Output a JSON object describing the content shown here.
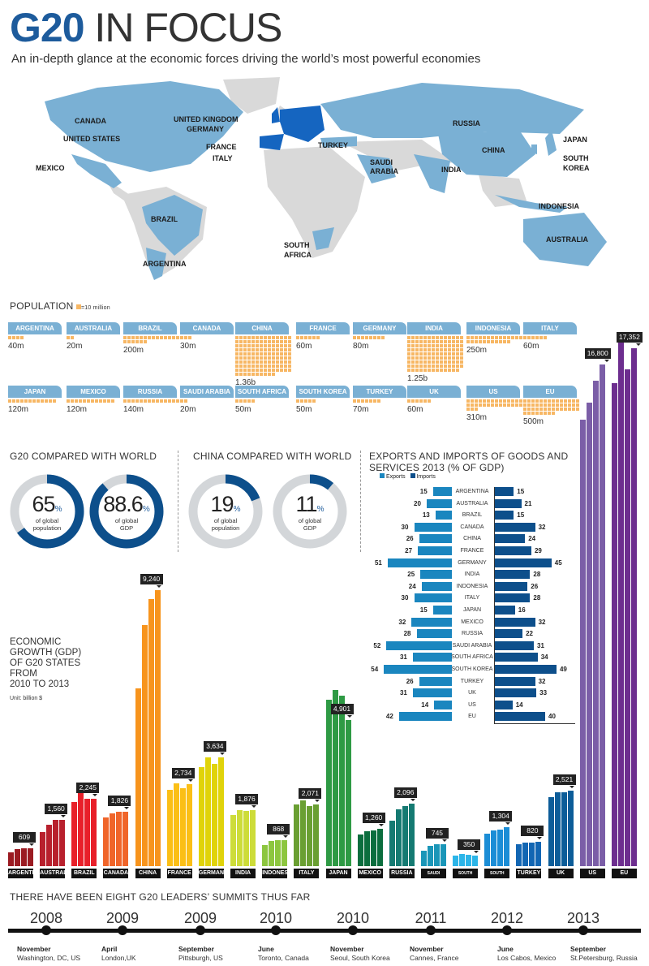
{
  "header": {
    "title_bold": "G20",
    "title_light": "IN FOCUS",
    "subtitle": "An in-depth glance at the economic forces driving the world’s most powerful economies"
  },
  "map": {
    "labels": [
      "CANADA",
      "UNITED STATES",
      "MEXICO",
      "BRAZIL",
      "ARGENTINA",
      "UNITED KINGDOM",
      "GERMANY",
      "FRANCE",
      "ITALY",
      "TURKEY",
      "SAUDI ARABIA",
      "SOUTH AFRICA",
      "RUSSIA",
      "CHINA",
      "INDIA",
      "JAPAN",
      "SOUTH KOREA",
      "INDONESIA",
      "AUSTRALIA"
    ],
    "colors": {
      "g20": "#7ab0d4",
      "eu": "#1565c0",
      "other": "#d9d9d9"
    }
  },
  "population": {
    "title": "POPULATION",
    "legend": "=10 million",
    "unit_millions_per_square": 10,
    "items": [
      {
        "name": "ARGENTINA",
        "label": "40m",
        "value": 40
      },
      {
        "name": "AUSTRALIA",
        "label": "20m",
        "value": 20
      },
      {
        "name": "BRAZIL",
        "label": "200m",
        "value": 200
      },
      {
        "name": "CANADA",
        "label": "30m",
        "value": 30
      },
      {
        "name": "CHINA",
        "label": "1.36b",
        "value": 1360
      },
      {
        "name": "FRANCE",
        "label": "60m",
        "value": 60
      },
      {
        "name": "GERMANY",
        "label": "80m",
        "value": 80
      },
      {
        "name": "INDIA",
        "label": "1.25b",
        "value": 1250
      },
      {
        "name": "INDONESIA",
        "label": "250m",
        "value": 250
      },
      {
        "name": "ITALY",
        "label": "60m",
        "value": 60
      },
      {
        "name": "JAPAN",
        "label": "120m",
        "value": 120
      },
      {
        "name": "MEXICO",
        "label": "120m",
        "value": 120
      },
      {
        "name": "RUSSIA",
        "label": "140m",
        "value": 140
      },
      {
        "name": "SAUDI ARABIA",
        "label": "20m",
        "value": 20
      },
      {
        "name": "SOUTH AFRICA",
        "label": "50m",
        "value": 50
      },
      {
        "name": "SOUTH KOREA",
        "label": "50m",
        "value": 50
      },
      {
        "name": "TURKEY",
        "label": "70m",
        "value": 70
      },
      {
        "name": "UK",
        "label": "60m",
        "value": 60
      },
      {
        "name": "US",
        "label": "310m",
        "value": 310
      },
      {
        "name": "EU",
        "label": "500m",
        "value": 500
      }
    ]
  },
  "g20_world": {
    "title": "G20 COMPARED WITH WORLD",
    "donuts": [
      {
        "value": "65",
        "pct": "%",
        "l1": "of global",
        "l2": "population",
        "fraction": 0.65
      },
      {
        "value": "88.6",
        "pct": "%",
        "l1": "of global",
        "l2": "GDP",
        "fraction": 0.886
      }
    ]
  },
  "china_world": {
    "title": "CHINA COMPARED WITH WORLD",
    "donuts": [
      {
        "value": "19",
        "pct": "%",
        "l1": "of global",
        "l2": "population",
        "fraction": 0.19
      },
      {
        "value": "11",
        "pct": "%",
        "l1": "of global",
        "l2": "GDP",
        "fraction": 0.11
      }
    ]
  },
  "colors": {
    "donut_fill": "#0d4f8b",
    "donut_track": "#d3d6d9",
    "exports": "#1a86bf",
    "imports": "#0d4f8b",
    "timeline": "#111111"
  },
  "chart_data": [
    {
      "type": "bar",
      "title": "EXPORTS AND IMPORTS OF GOODS AND SERVICES 2013 (% OF GDP)",
      "title_l1": "EXPORTS AND IMPORTS OF GOODS AND",
      "title_l2": "SERVICES 2013 (% OF GDP)",
      "legend": [
        "Exports",
        "Imports"
      ],
      "categories": [
        "ARGENTINA",
        "AUSTRALIA",
        "BRAZIL",
        "CANADA",
        "CHINA",
        "FRANCE",
        "GERMANY",
        "INDIA",
        "INDONESIA",
        "ITALY",
        "JAPAN",
        "MEXICO",
        "RUSSIA",
        "SAUDI ARABIA",
        "SOUTH AFRICA",
        "SOUTH KOREA",
        "TURKEY",
        "UK",
        "US",
        "EU"
      ],
      "series": [
        {
          "name": "Exports",
          "values": [
            15,
            20,
            13,
            30,
            26,
            27,
            51,
            25,
            24,
            30,
            15,
            32,
            28,
            52,
            31,
            54,
            26,
            31,
            14,
            42
          ]
        },
        {
          "name": "Imports",
          "values": [
            15,
            21,
            15,
            32,
            24,
            29,
            45,
            28,
            26,
            28,
            16,
            32,
            22,
            31,
            34,
            49,
            32,
            33,
            14,
            40
          ]
        }
      ]
    },
    {
      "type": "bar",
      "title": "ECONOMIC GROWTH (GDP) OF G20 STATES FROM 2010 TO 2013",
      "title_lines": [
        "ECONOMIC",
        "GROWTH (GDP)",
        "OF G20 STATES",
        "FROM",
        "2010 TO 2013"
      ],
      "unit": "Unit: billion $",
      "x": [
        2010,
        2011,
        2012,
        2013
      ],
      "series": [
        {
          "name": "ARGENTINA",
          "values": [
            470,
            560,
            600,
            609
          ],
          "label": "609",
          "color": "#9b1b22"
        },
        {
          "name": "AUSTRALIA",
          "values": [
            1140,
            1390,
            1540,
            1560
          ],
          "label": "1,560",
          "color": "#b8202d"
        },
        {
          "name": "BRAZIL",
          "values": [
            2150,
            2480,
            2260,
            2245
          ],
          "label": "2,245",
          "color": "#e8202a"
        },
        {
          "name": "CANADA",
          "values": [
            1620,
            1780,
            1820,
            1826
          ],
          "label": "1,826",
          "color": "#f0652a"
        },
        {
          "name": "CHINA",
          "values": [
            5960,
            8080,
            8950,
            9240
          ],
          "label": "9,240",
          "color": "#f7941d"
        },
        {
          "name": "FRANCE",
          "values": [
            2570,
            2780,
            2620,
            2734
          ],
          "label": "2,734",
          "color": "#fbbf16"
        },
        {
          "name": "GERMANY",
          "values": [
            3310,
            3640,
            3420,
            3634
          ],
          "label": "3,634",
          "color": "#e0d30a"
        },
        {
          "name": "INDIA",
          "values": [
            1710,
            1880,
            1860,
            1876
          ],
          "label": "1,876",
          "color": "#cddc39"
        },
        {
          "name": "INDONESIA",
          "values": [
            720,
            840,
            870,
            868
          ],
          "label": "868",
          "color": "#8dc63f"
        },
        {
          "name": "ITALY",
          "values": [
            2060,
            2200,
            2020,
            2071
          ],
          "label": "2,071",
          "color": "#6a9f32"
        },
        {
          "name": "JAPAN",
          "values": [
            5580,
            5900,
            5710,
            4901
          ],
          "label": "4,901",
          "color": "#2e9a44"
        },
        {
          "name": "MEXICO",
          "values": [
            1060,
            1170,
            1190,
            1260
          ],
          "label": "1,260",
          "color": "#0b6e3e"
        },
        {
          "name": "RUSSIA",
          "values": [
            1530,
            1900,
            2020,
            2096
          ],
          "label": "2,096",
          "color": "#157a72"
        },
        {
          "name": "SAUDI ARABIA",
          "values": [
            530,
            670,
            740,
            745
          ],
          "label": "745",
          "color": "#1a96b8"
        },
        {
          "name": "SOUTH AFRICA",
          "values": [
            360,
            410,
            380,
            350
          ],
          "label": "350",
          "color": "#2cb5e8"
        },
        {
          "name": "SOUTH KOREA",
          "values": [
            1100,
            1210,
            1230,
            1304
          ],
          "label": "1,304",
          "color": "#1b8dd6"
        },
        {
          "name": "TURKEY",
          "values": [
            740,
            780,
            790,
            820
          ],
          "label": "820",
          "color": "#1266b3"
        },
        {
          "name": "UK",
          "values": [
            2300,
            2470,
            2470,
            2521
          ],
          "label": "2,521",
          "color": "#0c5d99"
        },
        {
          "name": "US",
          "values": [
            14960,
            15530,
            16270,
            16800
          ],
          "label": "16,800",
          "color": "#7b5ea7"
        },
        {
          "name": "EU",
          "values": [
            16180,
            17600,
            16650,
            17352
          ],
          "label": "17,352",
          "color": "#6d2e8f"
        }
      ]
    }
  ],
  "timeline": {
    "title": "THERE HAVE BEEN EIGHT G20 LEADERS’ SUMMITS THUS FAR",
    "events": [
      {
        "year": "2008",
        "month": "November",
        "place": "Washington, DC, US"
      },
      {
        "year": "2009",
        "month": "April",
        "place": "London,UK"
      },
      {
        "year": "2009",
        "month": "September",
        "place": "Pittsburgh, US"
      },
      {
        "year": "2010",
        "month": "June",
        "place": "Toronto, Canada"
      },
      {
        "year": "2010",
        "month": "November",
        "place": "Seoul, South Korea"
      },
      {
        "year": "2011",
        "month": "November",
        "place": "Cannes, France"
      },
      {
        "year": "2012",
        "month": "June",
        "place": "Los Cabos, Mexico"
      },
      {
        "year": "2013",
        "month": "September",
        "place": "St.Petersburg, Russia"
      }
    ]
  }
}
